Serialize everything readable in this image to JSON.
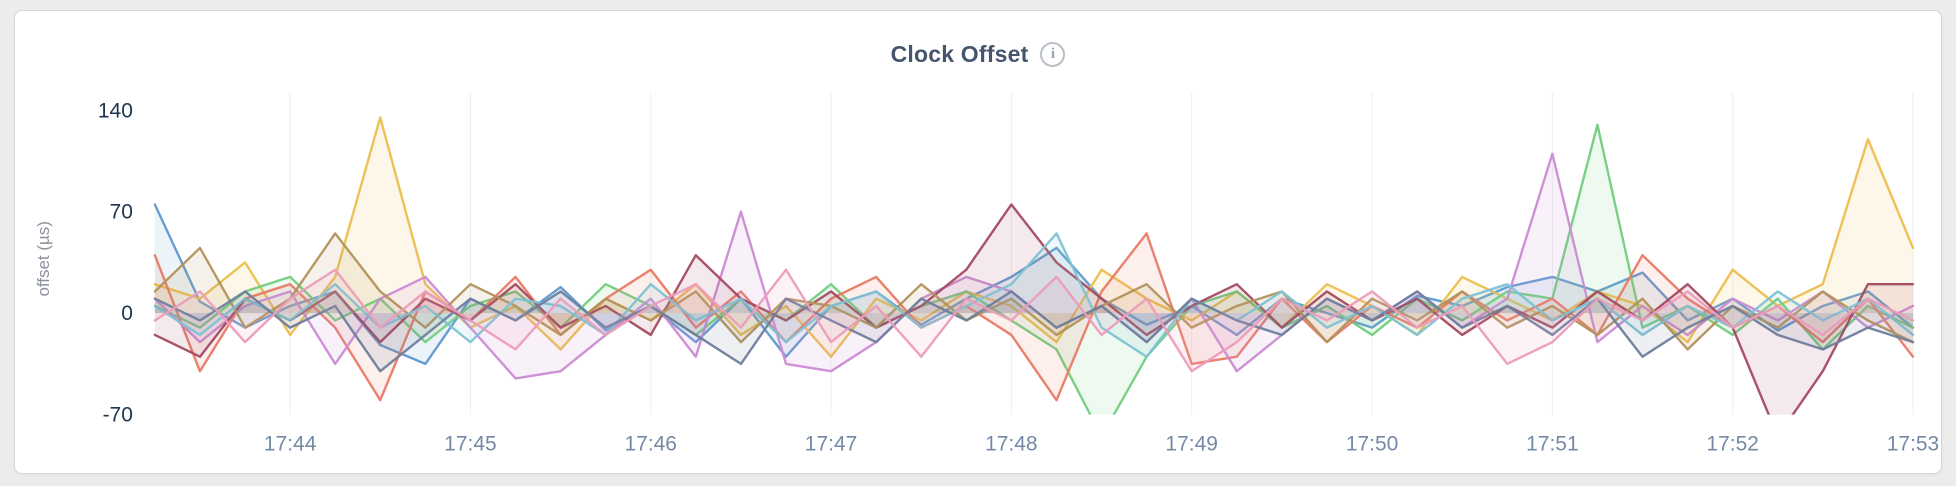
{
  "header": {
    "info_glyph": "i"
  },
  "chart_data": {
    "type": "line",
    "title": "Clock Offset",
    "xlabel": "",
    "ylabel": "offset (µs)",
    "ylim": [
      -70,
      145
    ],
    "y_ticks": [
      -70,
      0,
      70,
      140
    ],
    "x_start": "17:43:15",
    "x_step_seconds": 15,
    "x_ticks": [
      {
        "index": 3,
        "label": "17:44"
      },
      {
        "index": 7,
        "label": "17:45"
      },
      {
        "index": 11,
        "label": "17:46"
      },
      {
        "index": 15,
        "label": "17:47"
      },
      {
        "index": 19,
        "label": "17:48"
      },
      {
        "index": 23,
        "label": "17:49"
      },
      {
        "index": 27,
        "label": "17:50"
      },
      {
        "index": 31,
        "label": "17:51"
      },
      {
        "index": 35,
        "label": "17:52"
      },
      {
        "index": 39,
        "label": "17:53"
      }
    ],
    "grid": "vertical",
    "legend": "none",
    "fill_opacity": 0.12,
    "grid_color": "#eceef1",
    "axis_value_color": "#1d3550",
    "axis_tick_color": "#7589a6",
    "axis_label_color": "#8a919c",
    "series": [
      {
        "name": "blue",
        "color": "#5f99d0",
        "values": [
          75,
          8,
          -10,
          5,
          15,
          -22,
          -35,
          10,
          -5,
          18,
          -12,
          5,
          -20,
          10,
          -30,
          5,
          15,
          -8,
          10,
          25,
          45,
          10,
          -8,
          5,
          -15,
          10,
          0,
          -10,
          12,
          5,
          18,
          25,
          15,
          28,
          -5,
          10,
          -12,
          5,
          15,
          -10
        ]
      },
      {
        "name": "gold",
        "color": "#ecbe4d",
        "values": [
          20,
          10,
          35,
          -15,
          25,
          135,
          20,
          -10,
          5,
          -25,
          10,
          -5,
          20,
          -15,
          5,
          -30,
          10,
          -5,
          15,
          5,
          -20,
          30,
          10,
          -5,
          15,
          -10,
          20,
          5,
          -15,
          25,
          10,
          -5,
          15,
          5,
          -20,
          30,
          5,
          20,
          120,
          45
        ]
      },
      {
        "name": "green",
        "color": "#72ce7e",
        "values": [
          5,
          -10,
          15,
          25,
          -5,
          10,
          -20,
          5,
          15,
          -10,
          20,
          5,
          -15,
          10,
          -5,
          20,
          -10,
          5,
          15,
          -5,
          -25,
          -85,
          -30,
          5,
          15,
          -10,
          5,
          -15,
          10,
          -5,
          15,
          10,
          130,
          -10,
          5,
          -15,
          10,
          -25,
          5,
          -10
        ]
      },
      {
        "name": "coral",
        "color": "#e87a66",
        "values": [
          40,
          -40,
          10,
          20,
          -10,
          -60,
          15,
          -5,
          25,
          -15,
          10,
          30,
          -10,
          15,
          -20,
          10,
          25,
          -10,
          5,
          -15,
          -60,
          15,
          55,
          -35,
          -30,
          10,
          -20,
          5,
          -10,
          15,
          -5,
          10,
          -15,
          40,
          10,
          -10,
          5,
          -20,
          10,
          -30
        ]
      },
      {
        "name": "orchid",
        "color": "#cb8bd4",
        "values": [
          10,
          -20,
          5,
          15,
          -35,
          10,
          25,
          -10,
          -45,
          -40,
          -15,
          10,
          -30,
          70,
          -35,
          -40,
          -20,
          10,
          25,
          15,
          -10,
          5,
          -20,
          10,
          -40,
          -15,
          10,
          -5,
          15,
          -10,
          10,
          110,
          -20,
          5,
          -15,
          10,
          -5,
          15,
          -10,
          5
        ]
      },
      {
        "name": "maroon",
        "color": "#a34a60",
        "values": [
          -15,
          -30,
          10,
          -5,
          15,
          -20,
          10,
          -5,
          20,
          -10,
          5,
          -15,
          40,
          10,
          -5,
          15,
          -10,
          5,
          30,
          75,
          35,
          10,
          -15,
          5,
          20,
          -10,
          15,
          -5,
          10,
          -15,
          5,
          -10,
          15,
          -5,
          20,
          -10,
          -85,
          -40,
          20,
          20
        ]
      },
      {
        "name": "olive",
        "color": "#b2925c",
        "values": [
          15,
          45,
          -10,
          10,
          55,
          15,
          -10,
          20,
          5,
          -15,
          10,
          -5,
          15,
          -20,
          10,
          5,
          -10,
          20,
          -5,
          10,
          -15,
          5,
          20,
          -10,
          5,
          15,
          -20,
          10,
          -5,
          15,
          -10,
          5,
          -15,
          10,
          -25,
          5,
          -10,
          15,
          -5,
          -20
        ]
      },
      {
        "name": "teal",
        "color": "#7ec2d3",
        "values": [
          5,
          -15,
          10,
          -5,
          20,
          -10,
          5,
          -20,
          10,
          5,
          -15,
          20,
          -5,
          10,
          -20,
          5,
          15,
          -10,
          5,
          20,
          55,
          -10,
          -30,
          10,
          -5,
          15,
          -10,
          5,
          -15,
          10,
          20,
          -5,
          10,
          -15,
          5,
          -10,
          15,
          -5,
          10,
          -15
        ]
      },
      {
        "name": "slate",
        "color": "#6e7e9c",
        "values": [
          10,
          -5,
          15,
          -10,
          5,
          -40,
          -15,
          10,
          -5,
          15,
          -10,
          5,
          -15,
          -35,
          10,
          -5,
          -20,
          10,
          -5,
          15,
          -10,
          5,
          -20,
          10,
          -5,
          -15,
          10,
          -5,
          15,
          -10,
          5,
          -15,
          10,
          -30,
          -10,
          5,
          -15,
          -25,
          -10,
          -20
        ]
      },
      {
        "name": "pink",
        "color": "#ec9cbb",
        "values": [
          -5,
          15,
          -20,
          10,
          30,
          -10,
          15,
          -5,
          -25,
          10,
          -15,
          5,
          20,
          -10,
          30,
          -20,
          5,
          -30,
          10,
          -5,
          25,
          -15,
          10,
          -40,
          -20,
          10,
          -5,
          15,
          -10,
          5,
          -35,
          -20,
          10,
          -5,
          15,
          -10,
          5,
          -15,
          10,
          -5
        ]
      }
    ]
  }
}
